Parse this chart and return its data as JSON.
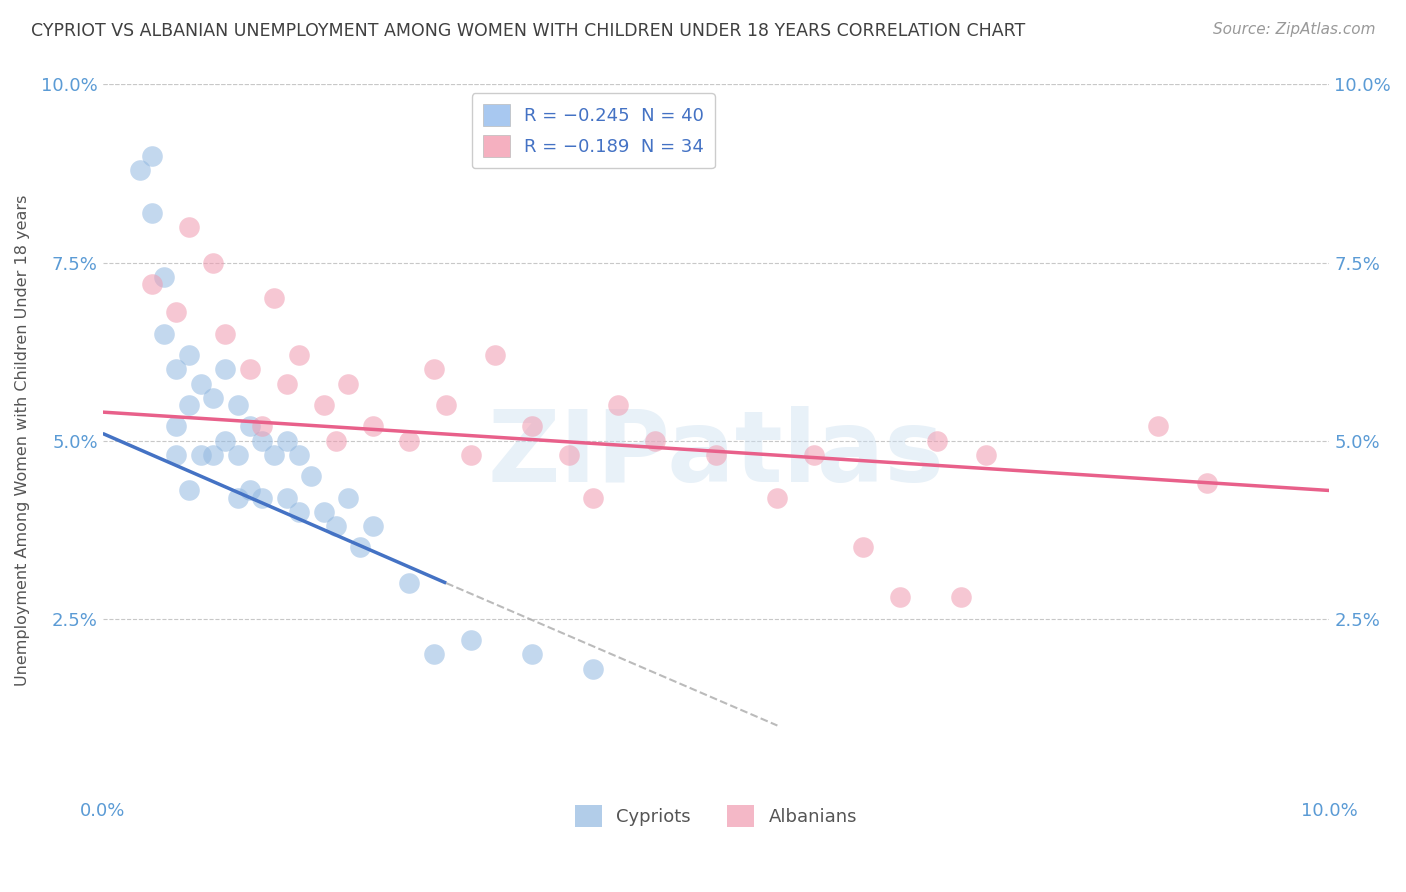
{
  "title": "CYPRIOT VS ALBANIAN UNEMPLOYMENT AMONG WOMEN WITH CHILDREN UNDER 18 YEARS CORRELATION CHART",
  "source": "Source: ZipAtlas.com",
  "ylabel": "Unemployment Among Women with Children Under 18 years",
  "yticks": [
    0.0,
    0.025,
    0.05,
    0.075,
    0.1
  ],
  "ytick_labels": [
    "",
    "2.5%",
    "5.0%",
    "7.5%",
    "10.0%"
  ],
  "xlim": [
    0.0,
    0.1
  ],
  "ylim": [
    0.0,
    0.1
  ],
  "cypriot_label": "Cypriots",
  "albanian_label": "Albanians",
  "cypriot_color": "#92b8e0",
  "albanian_color": "#f09ab0",
  "cypriot_line_color": "#4472c4",
  "albanian_line_color": "#e8608a",
  "background_color": "#ffffff",
  "grid_color": "#c8c8c8",
  "title_color": "#404040",
  "axis_label_color": "#5b9bd5",
  "cypriot_points_x": [
    0.003,
    0.004,
    0.004,
    0.005,
    0.005,
    0.006,
    0.006,
    0.006,
    0.007,
    0.007,
    0.007,
    0.008,
    0.008,
    0.009,
    0.009,
    0.01,
    0.01,
    0.011,
    0.011,
    0.011,
    0.012,
    0.012,
    0.013,
    0.013,
    0.014,
    0.015,
    0.015,
    0.016,
    0.016,
    0.017,
    0.018,
    0.019,
    0.02,
    0.021,
    0.022,
    0.025,
    0.027,
    0.03,
    0.035,
    0.04
  ],
  "cypriot_points_y": [
    0.088,
    0.082,
    0.09,
    0.073,
    0.065,
    0.06,
    0.052,
    0.048,
    0.062,
    0.055,
    0.043,
    0.058,
    0.048,
    0.056,
    0.048,
    0.06,
    0.05,
    0.055,
    0.048,
    0.042,
    0.052,
    0.043,
    0.05,
    0.042,
    0.048,
    0.05,
    0.042,
    0.048,
    0.04,
    0.045,
    0.04,
    0.038,
    0.042,
    0.035,
    0.038,
    0.03,
    0.02,
    0.022,
    0.02,
    0.018
  ],
  "albanian_points_x": [
    0.004,
    0.006,
    0.007,
    0.009,
    0.01,
    0.012,
    0.013,
    0.014,
    0.015,
    0.016,
    0.018,
    0.019,
    0.02,
    0.022,
    0.025,
    0.027,
    0.028,
    0.03,
    0.032,
    0.035,
    0.038,
    0.04,
    0.042,
    0.045,
    0.05,
    0.055,
    0.058,
    0.062,
    0.065,
    0.068,
    0.07,
    0.072,
    0.086,
    0.09
  ],
  "albanian_points_y": [
    0.072,
    0.068,
    0.08,
    0.075,
    0.065,
    0.06,
    0.052,
    0.07,
    0.058,
    0.062,
    0.055,
    0.05,
    0.058,
    0.052,
    0.05,
    0.06,
    0.055,
    0.048,
    0.062,
    0.052,
    0.048,
    0.042,
    0.055,
    0.05,
    0.048,
    0.042,
    0.048,
    0.035,
    0.028,
    0.05,
    0.028,
    0.048,
    0.052,
    0.044
  ],
  "blue_line_x0": 0.0,
  "blue_line_y0": 0.051,
  "blue_line_x1": 0.028,
  "blue_line_y1": 0.03,
  "pink_line_x0": 0.0,
  "pink_line_y0": 0.054,
  "pink_line_x1": 0.1,
  "pink_line_y1": 0.043,
  "dash_line_x0": 0.028,
  "dash_line_y0": 0.03,
  "dash_line_x1": 0.055,
  "dash_line_y1": 0.01
}
